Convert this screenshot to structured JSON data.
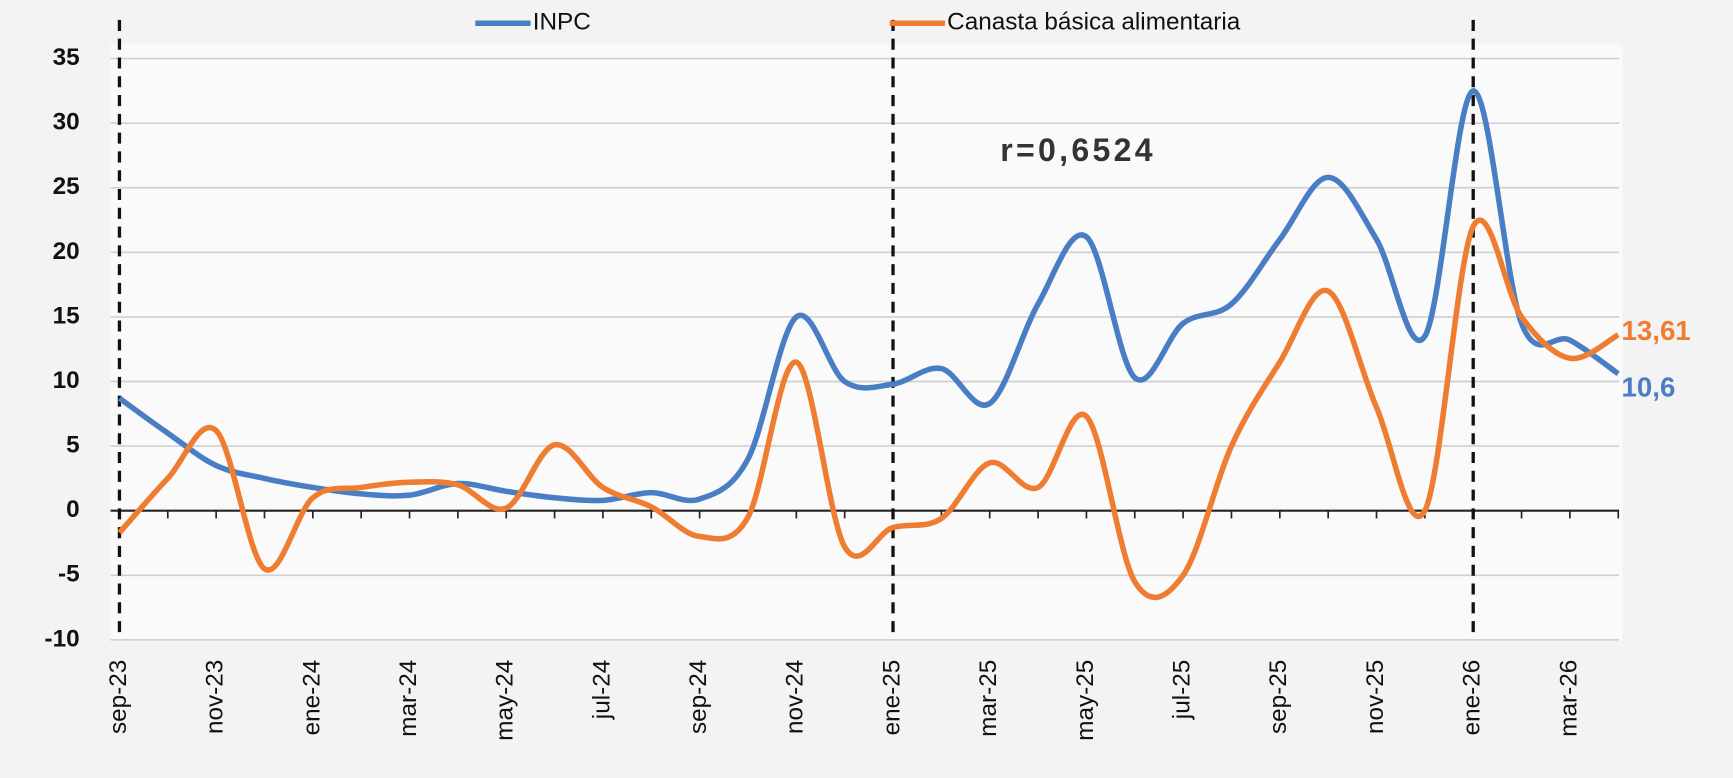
{
  "chart_data": {
    "type": "line",
    "annotation": "r=0,6524",
    "categories": [
      "sep-23",
      null,
      "nov-23",
      null,
      "ene-24",
      null,
      "mar-24",
      null,
      "may-24",
      null,
      "jul-24",
      null,
      "sep-24",
      null,
      "nov-24",
      null,
      "ene-25",
      null,
      "mar-25",
      null,
      "may-25",
      null,
      "jul-25",
      null,
      "sep-25",
      null,
      "nov-25",
      null,
      "ene-26",
      null,
      "mar-26",
      null
    ],
    "series": [
      {
        "name": "INPC",
        "color": "#4a7ec4",
        "values": [
          8.7,
          6,
          3.5,
          2.5,
          1.8,
          1.3,
          1.2,
          2.1,
          1.5,
          1.0,
          0.8,
          1.4,
          0.9,
          4,
          15,
          10,
          9.8,
          11,
          8.3,
          16,
          21.2,
          10.3,
          14.5,
          16,
          21,
          25.8,
          21,
          13.5,
          32.5,
          14.5,
          13.2,
          10.6
        ],
        "value_labels": [
          null,
          null,
          null,
          null,
          null,
          null,
          null,
          null,
          null,
          null,
          null,
          null,
          null,
          null,
          null,
          null,
          null,
          null,
          null,
          null,
          null,
          null,
          null,
          null,
          null,
          null,
          null,
          null,
          null,
          null,
          null,
          "10,6"
        ]
      },
      {
        "name": "Canasta básica alimentaria",
        "color": "#ef7d31",
        "values": [
          -1.7,
          2.5,
          6.2,
          -4.5,
          1,
          1.8,
          2.2,
          2.0,
          0.2,
          5.1,
          1.8,
          0.3,
          -2,
          -0.5,
          11.5,
          -2.8,
          -1.3,
          -0.6,
          3.7,
          1.8,
          7.3,
          -5.5,
          -5,
          5,
          11.5,
          17,
          8,
          0,
          22,
          15,
          11.8,
          13.61
        ],
        "value_labels": [
          null,
          null,
          null,
          null,
          null,
          null,
          null,
          null,
          null,
          null,
          null,
          null,
          null,
          null,
          null,
          null,
          null,
          null,
          null,
          null,
          null,
          null,
          null,
          null,
          null,
          null,
          null,
          null,
          null,
          null,
          null,
          "13,61"
        ]
      }
    ],
    "reference_lines": [
      "sep-23",
      "ene-25",
      "ene-26"
    ],
    "ylim": [
      -10,
      35
    ],
    "yticks": [
      -10,
      -5,
      0,
      5,
      10,
      15,
      20,
      25,
      30,
      35
    ],
    "grid": true
  }
}
